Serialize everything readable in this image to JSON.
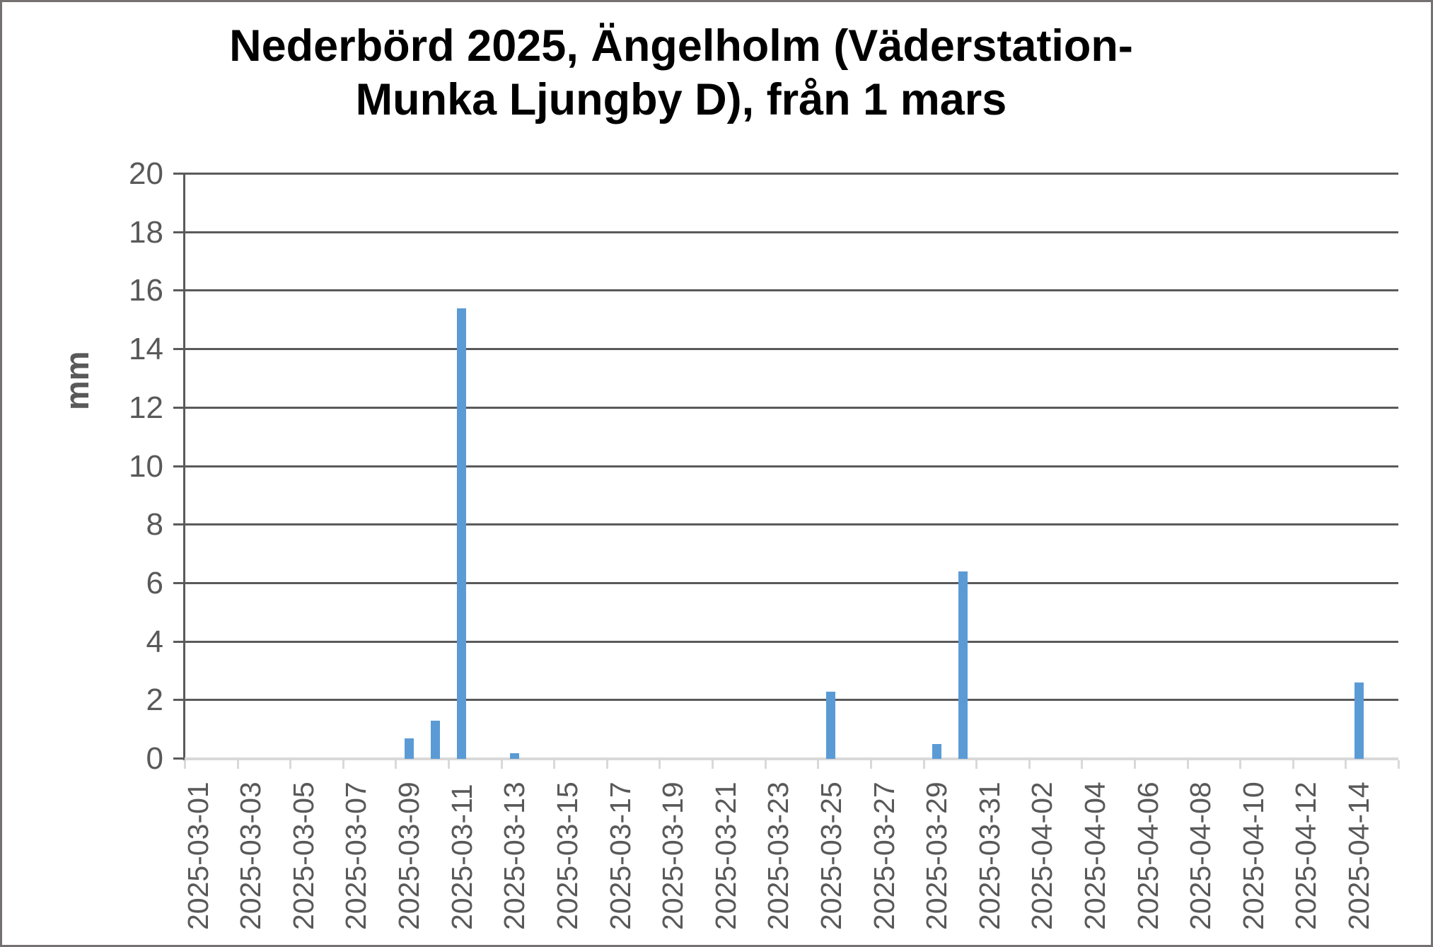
{
  "window": {
    "background": "#ffffff",
    "frame_border_color": "#767171"
  },
  "chart_data": {
    "type": "bar",
    "title": "Nederbörd 2025, Ängelholm (Väderstation-Munka Ljungby D), från 1 mars",
    "title_lines": [
      "Nederbörd 2025, Ängelholm (Väderstation-",
      "Munka Ljungby D), från 1 mars"
    ],
    "xlabel": "",
    "ylabel": "mm",
    "ylim": [
      0,
      20
    ],
    "y_tick_step": 2,
    "y_tick_labels": [
      "20",
      "18",
      "16",
      "14",
      "12",
      "10",
      "8",
      "6",
      "4",
      "2",
      "0"
    ],
    "grid": true,
    "legend": false,
    "x_label_every": 2,
    "categories": [
      "2025-03-01",
      "2025-03-02",
      "2025-03-03",
      "2025-03-04",
      "2025-03-05",
      "2025-03-06",
      "2025-03-07",
      "2025-03-08",
      "2025-03-09",
      "2025-03-10",
      "2025-03-11",
      "2025-03-12",
      "2025-03-13",
      "2025-03-14",
      "2025-03-15",
      "2025-03-16",
      "2025-03-17",
      "2025-03-18",
      "2025-03-19",
      "2025-03-20",
      "2025-03-21",
      "2025-03-22",
      "2025-03-23",
      "2025-03-24",
      "2025-03-25",
      "2025-03-26",
      "2025-03-27",
      "2025-03-28",
      "2025-03-29",
      "2025-03-30",
      "2025-03-31",
      "2025-04-01",
      "2025-04-02",
      "2025-04-03",
      "2025-04-04",
      "2025-04-05",
      "2025-04-06",
      "2025-04-07",
      "2025-04-08",
      "2025-04-09",
      "2025-04-10",
      "2025-04-11",
      "2025-04-12",
      "2025-04-13",
      "2025-04-14",
      "2025-04-15"
    ],
    "values": [
      0,
      0,
      0,
      0,
      0,
      0,
      0,
      0,
      0.7,
      1.3,
      15.4,
      0,
      0.2,
      0,
      0,
      0,
      0,
      0,
      0,
      0,
      0,
      0,
      0,
      0,
      2.3,
      0,
      0,
      0,
      0.5,
      6.4,
      0,
      0,
      0,
      0,
      0,
      0,
      0,
      0,
      0,
      0,
      0,
      0,
      0,
      0,
      2.6,
      0
    ],
    "colors": {
      "bar": "#5B9BD5",
      "gridline": "#5a5a5a",
      "y_axis_line": "#5a5a5a",
      "x_axis_line": "#d9d9d9",
      "tick_label_text": "#595959",
      "title_text": "#000000"
    }
  }
}
